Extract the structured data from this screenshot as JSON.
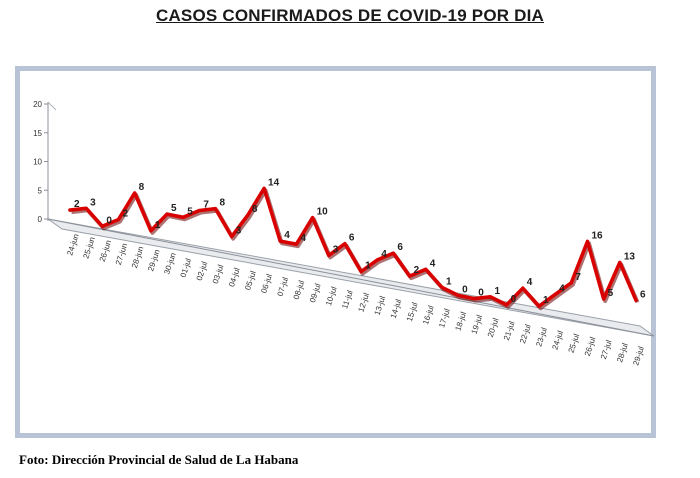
{
  "header": {
    "title": "CASOS CONFIRMADOS DE COVID-19 POR DIA"
  },
  "footer": {
    "caption": "Foto: Dirección Provincial de Salud de La Habana"
  },
  "chart_data": {
    "type": "line",
    "title": "",
    "xlabel": "",
    "ylabel": "",
    "ylim": [
      0,
      20
    ],
    "yticks": [
      "0",
      "5",
      "10",
      "15",
      "20"
    ],
    "grid": false,
    "legend": "none",
    "line_color": "#d90000",
    "categories": [
      "24-jun",
      "25-jun",
      "26-jun",
      "27-jun",
      "28-jun",
      "29-jun",
      "30-jun",
      "01-jul",
      "02-jul",
      "03-jul",
      "04-jul",
      "05-jul",
      "06-jul",
      "07-jul",
      "08-jul",
      "09-jul",
      "10-jul",
      "11-jul",
      "12-jul",
      "13-jul",
      "14-jul",
      "15-jul",
      "16-jul",
      "17-jul",
      "18-jul",
      "19-jul",
      "20-jul",
      "21-jul",
      "22-jul",
      "23-jul",
      "24-jul",
      "25-jul",
      "26-jul",
      "27-jul",
      "28-jul",
      "29-jul"
    ],
    "values": [
      2,
      3,
      0,
      2,
      8,
      1,
      5,
      5,
      7,
      8,
      3,
      8,
      14,
      4,
      4,
      10,
      3,
      6,
      1,
      4,
      6,
      2,
      4,
      1,
      0,
      0,
      1,
      0,
      4,
      1,
      4,
      7,
      16,
      5,
      13,
      6
    ]
  }
}
